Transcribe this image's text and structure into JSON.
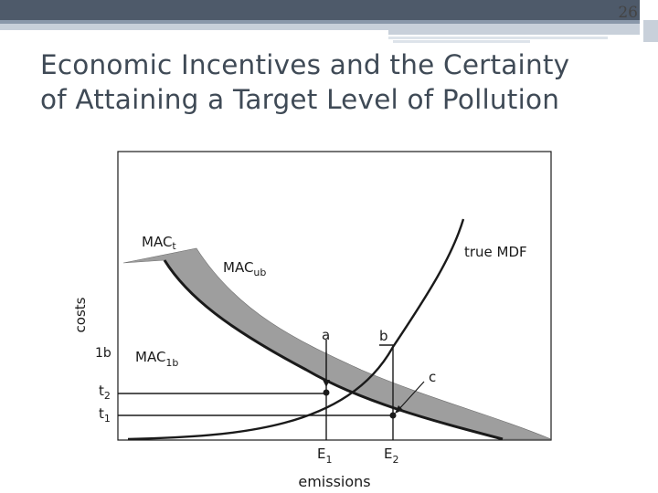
{
  "slide": {
    "page_number": "26",
    "title_line1": "Economic Incentives and the Certainty",
    "title_line2": "of Attaining a Target Level of Pollution"
  },
  "figure": {
    "y_axis_label": "costs",
    "x_axis_label": "emissions",
    "curves": {
      "mac_t": {
        "base": "MAC",
        "sub": "t"
      },
      "mac_ub": {
        "base": "MAC",
        "sub": "ub"
      },
      "mac_lb": {
        "base": "MAC",
        "sub": "1b"
      },
      "true_mdf": "true MDF"
    },
    "points": {
      "a": "a",
      "b": "b",
      "c": "c"
    },
    "y_ticks": {
      "lb": "1b",
      "t2": {
        "base": "t",
        "sub": "2"
      },
      "t1": {
        "base": "t",
        "sub": "1"
      }
    },
    "x_ticks": {
      "e1": {
        "base": "E",
        "sub": "1"
      },
      "e2": {
        "base": "E",
        "sub": "2"
      }
    },
    "colors": {
      "band": "#9e9e9e",
      "line": "#1a1a1a",
      "title": "#3f4a56"
    }
  }
}
